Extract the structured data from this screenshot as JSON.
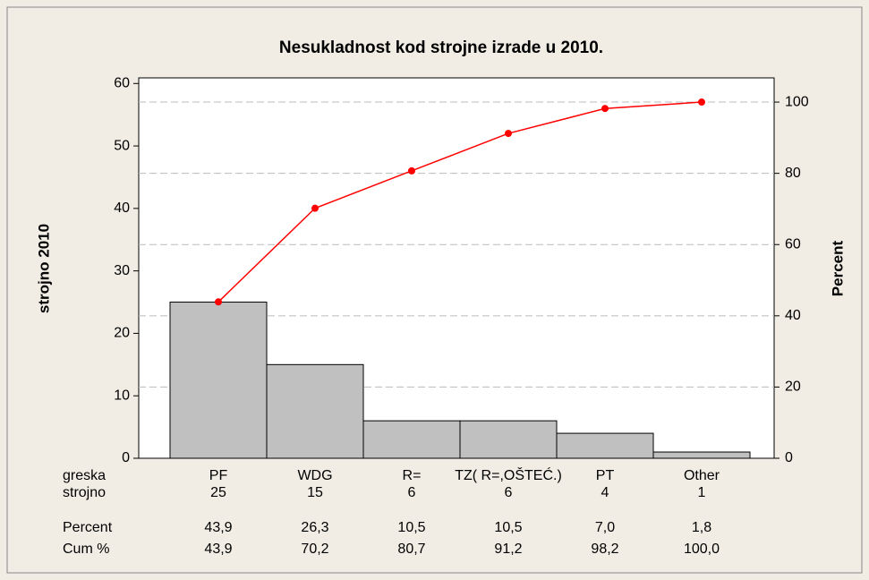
{
  "chart_data": {
    "type": "pareto",
    "title": "Nesukladnost kod strojne izrade u 2010.",
    "xlabel": "greska",
    "ylabel": "strojno 2010",
    "y2label": "Percent",
    "categories": [
      "PF",
      "WDG",
      "R=",
      "TZ( R=,OŠTEĆ.)",
      "PT",
      "Other"
    ],
    "series": [
      {
        "name": "strojno",
        "color": "#c0c0c0",
        "values": [
          25,
          15,
          6,
          6,
          4,
          1
        ]
      },
      {
        "name": "Cum %",
        "color": "#ff0000",
        "axis": "y2",
        "values": [
          43.9,
          70.2,
          80.7,
          91.2,
          98.2,
          100.0
        ],
        "value_labels": [
          "43,9",
          "70,2",
          "80,7",
          "91,2",
          "98,2",
          "100,0"
        ]
      }
    ],
    "percent": {
      "name": "Percent",
      "values": [
        43.9,
        26.3,
        10.5,
        10.5,
        7.0,
        1.8
      ],
      "value_labels": [
        "43,9",
        "26,3",
        "10,5",
        "10,5",
        "7,0",
        "1,8"
      ]
    },
    "ylim": [
      0,
      60.9
    ],
    "yticks": [
      0,
      10,
      20,
      30,
      40,
      50,
      60
    ],
    "y2lim": [
      0,
      106.8
    ],
    "y2ticks": [
      0,
      20,
      40,
      60,
      80,
      100
    ],
    "grid": true
  }
}
